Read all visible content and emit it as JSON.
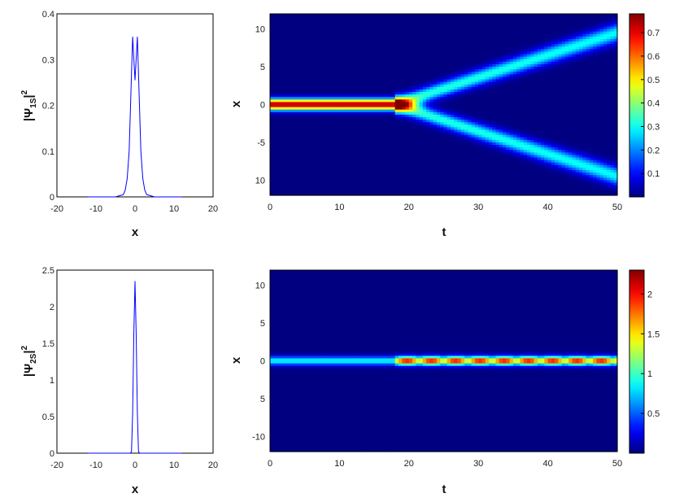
{
  "chart_data": [
    {
      "type": "line",
      "xlabel": "x",
      "ylabel": "|Ψ_1S|²",
      "ylabel_main": "|Ψ",
      "ylabel_sub": "1S",
      "ylabel_sup": "2",
      "xlim": [
        -20,
        20
      ],
      "ylim": [
        0,
        0.4
      ],
      "xticks": [
        "-20",
        "-10",
        "0",
        "10",
        "20"
      ],
      "yticks": [
        "0",
        "0.1",
        "0.2",
        "0.3",
        "0.4"
      ],
      "x": [
        -12,
        -10,
        -5,
        -3,
        -2.5,
        -2,
        -1.5,
        -1,
        -0.6,
        -0.3,
        0,
        0.3,
        0.6,
        1,
        1.5,
        2,
        2.5,
        3,
        5,
        10,
        12
      ],
      "y": [
        0,
        0,
        0,
        0.005,
        0.015,
        0.04,
        0.1,
        0.24,
        0.35,
        0.3,
        0.255,
        0.3,
        0.35,
        0.24,
        0.1,
        0.04,
        0.015,
        0.005,
        0,
        0,
        0
      ],
      "color": "#0000ff"
    },
    {
      "type": "heatmap",
      "xlabel": "t",
      "ylabel": "x",
      "xlim": [
        0,
        50
      ],
      "ylim": [
        -12,
        12
      ],
      "xticks": [
        "0",
        "10",
        "20",
        "30",
        "40",
        "50"
      ],
      "yticks": [
        "10",
        "5",
        "0",
        "-5",
        "10"
      ],
      "colorbar": {
        "ticks": [
          "0.7",
          "0.6",
          "0.5",
          "0.4",
          "0.3",
          "0.2",
          "0.1"
        ],
        "range": [
          0,
          0.78
        ]
      },
      "description": "single beam at x=0 until t≈18, then splits into two beams reaching x≈±9.5 at t=50",
      "split_time": 18,
      "final_position": 9.5,
      "peak": 0.75,
      "colormap": "jet"
    },
    {
      "type": "line",
      "xlabel": "x",
      "ylabel": "|Ψ_2S|²",
      "ylabel_main": "|Ψ",
      "ylabel_sub": "2S",
      "ylabel_sup": "2",
      "xlim": [
        -20,
        20
      ],
      "ylim": [
        0,
        2.5
      ],
      "xticks": [
        "-20",
        "-10",
        "0",
        "10",
        "20"
      ],
      "yticks": [
        "0",
        "0.5",
        "1",
        "1.5",
        "2",
        "2.5"
      ],
      "x": [
        -12,
        -5,
        -1.2,
        -0.9,
        -0.6,
        -0.3,
        0,
        0.3,
        0.6,
        0.9,
        1.2,
        5,
        12
      ],
      "y": [
        0,
        0,
        0,
        0.02,
        0.55,
        1.65,
        2.35,
        1.65,
        0.55,
        0.02,
        0,
        0,
        0
      ],
      "color": "#0000ff"
    },
    {
      "type": "heatmap",
      "xlabel": "t",
      "ylabel": "x",
      "xlim": [
        0,
        50
      ],
      "ylim": [
        -12,
        12
      ],
      "xticks": [
        "0",
        "10",
        "20",
        "30",
        "40",
        "50"
      ],
      "yticks": [
        "10",
        "5",
        "0",
        "5",
        "-10"
      ],
      "colorbar": {
        "ticks": [
          "2",
          "1.5",
          "1",
          "0.5"
        ],
        "range": [
          0,
          2.3
        ]
      },
      "description": "single narrow beam at x=0 for all t, intensity oscillating after t≈18",
      "peak": 2.2,
      "colormap": "jet"
    }
  ]
}
